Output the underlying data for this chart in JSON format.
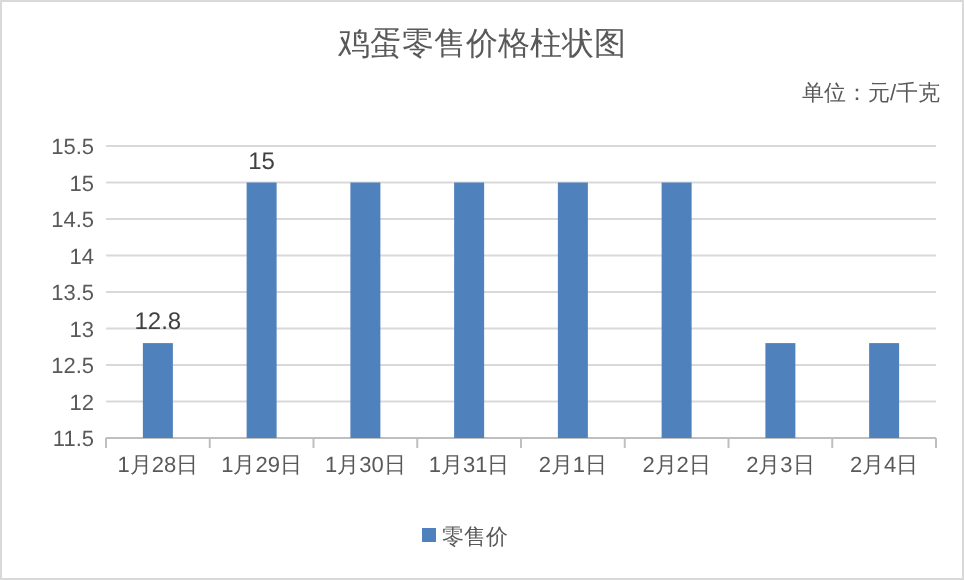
{
  "chart_data": {
    "type": "bar",
    "title": "鸡蛋零售价格柱状图",
    "annotations": [
      "单位：元/千克"
    ],
    "categories": [
      "1月28日",
      "1月29日",
      "1月30日",
      "1月31日",
      "2月1日",
      "2月2日",
      "2月3日",
      "2月4日"
    ],
    "series": [
      {
        "name": "零售价",
        "color": "#4f81bd",
        "values": [
          12.8,
          15,
          15,
          15,
          15,
          15,
          12.8,
          12.8
        ],
        "value_labels": [
          "12.8",
          "15",
          null,
          null,
          null,
          null,
          null,
          null
        ]
      }
    ],
    "ylim": [
      11.5,
      15.5
    ],
    "yticks": [
      11.5,
      12,
      12.5,
      13,
      13.5,
      14,
      14.5,
      15,
      15.5
    ],
    "grid": "y",
    "legend": "bottom"
  }
}
